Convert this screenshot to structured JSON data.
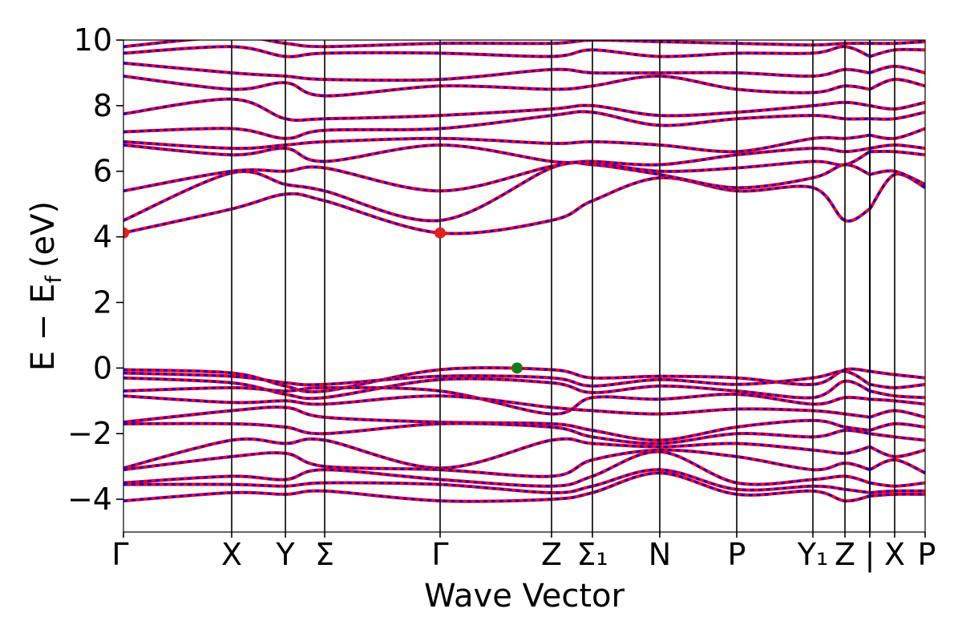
{
  "chart_data": {
    "type": "line",
    "title": "",
    "xlabel": "Wave Vector",
    "ylabel": "E − E_f (eV)",
    "ylabel_parts": {
      "main": "E − E",
      "sub": "f",
      "unit": "(eV)"
    },
    "ylim": [
      -5,
      10
    ],
    "yticks": [
      -4,
      -2,
      0,
      2,
      4,
      6,
      8,
      10
    ],
    "ytick_labels": [
      "−4",
      "−2",
      "0",
      "2",
      "4",
      "6",
      "8",
      "10"
    ],
    "xlim": [
      0,
      1.0
    ],
    "kpoints": [
      {
        "label": "Γ",
        "x": 0.0
      },
      {
        "label": "X",
        "x": 0.135
      },
      {
        "label": "Y",
        "x": 0.202
      },
      {
        "label": "Σ",
        "x": 0.251
      },
      {
        "label": "Γ",
        "x": 0.395
      },
      {
        "label": "Z",
        "x": 0.534
      },
      {
        "label": "Σ₁",
        "x": 0.585
      },
      {
        "label": "N",
        "x": 0.669
      },
      {
        "label": "P",
        "x": 0.765
      },
      {
        "label": "Y₁",
        "x": 0.86
      },
      {
        "label": "Z",
        "x": 0.9
      },
      {
        "label": "|",
        "x": 0.931
      },
      {
        "label": "X",
        "x": 0.962
      },
      {
        "label": "P",
        "x": 1.0
      }
    ],
    "path_break_x": 0.931,
    "band_colors": {
      "line": "#ff0000",
      "dash": "#0000ff"
    },
    "cbm_color": "#dd2222",
    "vbm_color": "#1a7a1a",
    "cbm_points": [
      {
        "x": 0.0,
        "y": 4.12
      },
      {
        "x": 0.395,
        "y": 4.12
      }
    ],
    "vbm_points": [
      {
        "x": 0.491,
        "y": 0.0
      }
    ],
    "valence_bands": [
      {
        "values": [
          -0.05,
          -0.15,
          -0.55,
          -0.7,
          -0.05,
          -0.05,
          -0.3,
          -0.25,
          -0.3,
          -0.5,
          -0.05,
          -0.1,
          -0.2,
          -0.3
        ]
      },
      {
        "values": [
          -0.15,
          -0.25,
          -0.45,
          -0.5,
          -0.25,
          -0.3,
          -0.55,
          -0.35,
          -0.5,
          -0.3,
          -0.1,
          -0.5,
          -0.6,
          -0.5
        ]
      },
      {
        "values": [
          -0.3,
          -0.45,
          -0.8,
          -0.9,
          -0.35,
          -0.45,
          -0.75,
          -0.55,
          -0.7,
          -0.9,
          -0.4,
          -0.7,
          -0.85,
          -0.9
        ]
      },
      {
        "values": [
          -0.7,
          -0.6,
          -0.7,
          -0.6,
          -0.7,
          -1.4,
          -0.9,
          -0.95,
          -0.8,
          -1.1,
          -0.9,
          -0.95,
          -1.0,
          -1.1
        ]
      },
      {
        "values": [
          -0.85,
          -1.05,
          -1.0,
          -1.1,
          -0.85,
          -1.2,
          -1.3,
          -1.4,
          -1.25,
          -1.3,
          -1.4,
          -1.5,
          -1.3,
          -1.5
        ]
      },
      {
        "values": [
          -1.65,
          -1.3,
          -1.2,
          -1.5,
          -1.65,
          -1.7,
          -1.9,
          -2.2,
          -1.8,
          -1.6,
          -1.8,
          -1.9,
          -1.7,
          -1.8
        ]
      },
      {
        "values": [
          -1.7,
          -1.7,
          -1.8,
          -2.0,
          -1.7,
          -1.8,
          -2.1,
          -2.3,
          -2.0,
          -2.1,
          -1.9,
          -2.0,
          -2.1,
          -2.2
        ]
      },
      {
        "values": [
          -3.05,
          -2.2,
          -2.3,
          -2.2,
          -3.05,
          -2.2,
          -2.3,
          -2.4,
          -2.3,
          -2.5,
          -2.6,
          -2.4,
          -2.7,
          -2.5
        ]
      },
      {
        "values": [
          -3.1,
          -2.7,
          -2.6,
          -3.0,
          -3.1,
          -3.3,
          -2.8,
          -2.5,
          -2.7,
          -3.1,
          -2.9,
          -3.1,
          -2.8,
          -3.2
        ]
      },
      {
        "values": [
          -3.5,
          -3.3,
          -3.4,
          -3.1,
          -3.4,
          -3.6,
          -3.3,
          -2.55,
          -3.5,
          -3.4,
          -3.3,
          -3.5,
          -3.6,
          -3.5
        ]
      },
      {
        "values": [
          -3.55,
          -3.55,
          -3.6,
          -3.5,
          -3.55,
          -3.8,
          -3.6,
          -3.1,
          -3.7,
          -3.6,
          -3.7,
          -3.8,
          -3.75,
          -3.75
        ]
      },
      {
        "values": [
          -4.05,
          -3.8,
          -3.85,
          -3.75,
          -4.05,
          -4.0,
          -3.8,
          -3.2,
          -3.85,
          -3.75,
          -4.05,
          -3.9,
          -3.85,
          -3.85
        ]
      }
    ],
    "conduction_bands": [
      {
        "values": [
          4.12,
          4.85,
          5.3,
          5.1,
          4.12,
          4.5,
          5.1,
          5.8,
          5.4,
          5.5,
          4.5,
          4.85,
          5.9,
          5.5
        ]
      },
      {
        "values": [
          4.5,
          5.95,
          5.6,
          5.4,
          4.5,
          6.1,
          6.2,
          5.9,
          5.5,
          5.8,
          6.2,
          5.9,
          6.0,
          5.6
        ]
      },
      {
        "values": [
          5.4,
          6.0,
          6.0,
          6.1,
          5.4,
          6.15,
          6.25,
          6.0,
          6.1,
          6.3,
          6.2,
          6.6,
          6.6,
          6.5
        ]
      },
      {
        "values": [
          6.8,
          6.5,
          6.7,
          6.3,
          6.8,
          6.3,
          6.3,
          6.2,
          6.5,
          6.7,
          6.6,
          6.7,
          6.8,
          6.7
        ]
      },
      {
        "values": [
          6.9,
          6.7,
          6.8,
          6.9,
          7.0,
          6.85,
          6.9,
          6.8,
          6.6,
          7.0,
          7.0,
          7.1,
          7.0,
          7.3
        ]
      },
      {
        "values": [
          7.2,
          7.3,
          7.0,
          7.25,
          7.3,
          7.7,
          7.8,
          7.4,
          7.6,
          7.7,
          7.6,
          7.6,
          7.6,
          7.8
        ]
      },
      {
        "values": [
          7.75,
          8.2,
          7.6,
          7.6,
          7.7,
          7.9,
          8.0,
          7.7,
          7.8,
          8.0,
          8.1,
          8.0,
          7.9,
          8.1
        ]
      },
      {
        "values": [
          8.9,
          8.5,
          8.7,
          8.3,
          8.6,
          8.5,
          8.6,
          8.9,
          8.5,
          8.4,
          8.6,
          8.5,
          8.8,
          8.6
        ]
      },
      {
        "values": [
          9.3,
          9.0,
          8.9,
          8.8,
          8.8,
          9.1,
          9.0,
          9.0,
          9.0,
          8.9,
          9.1,
          9.0,
          9.2,
          9.0
        ]
      },
      {
        "values": [
          9.6,
          9.8,
          9.5,
          9.6,
          9.6,
          9.5,
          9.7,
          9.5,
          9.6,
          9.6,
          9.8,
          9.5,
          9.7,
          9.7
        ]
      },
      {
        "values": [
          9.8,
          10.1,
          9.9,
          9.8,
          9.9,
          9.9,
          10.0,
          9.95,
          9.9,
          9.85,
          9.9,
          9.9,
          9.9,
          9.95
        ]
      }
    ]
  }
}
